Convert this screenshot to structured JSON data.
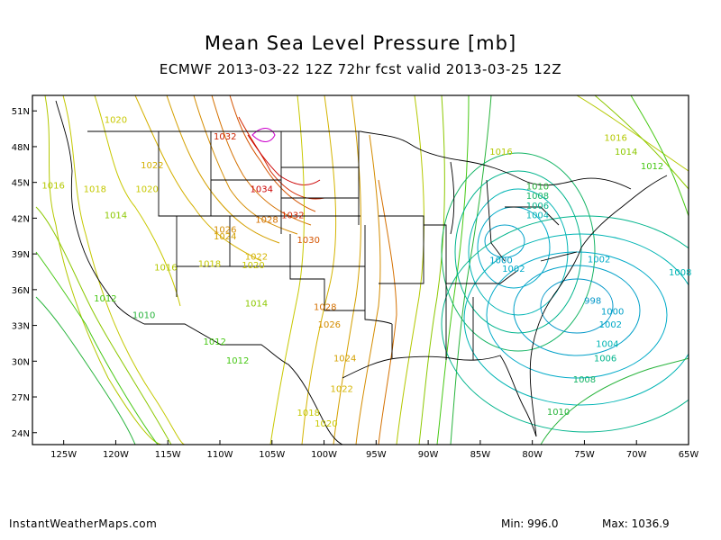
{
  "header": {
    "title": "Mean Sea Level Pressure [mb]",
    "subtitle": "ECMWF 2013-03-22 12Z 72hr fcst valid 2013-03-25 12Z"
  },
  "axes": {
    "lat_labels": [
      "51N",
      "48N",
      "45N",
      "42N",
      "39N",
      "36N",
      "33N",
      "30N",
      "27N",
      "24N"
    ],
    "lon_labels": [
      "125W",
      "120W",
      "115W",
      "110W",
      "105W",
      "100W",
      "95W",
      "90W",
      "85W",
      "80W",
      "75W",
      "70W",
      "65W"
    ]
  },
  "contour_labels": [
    {
      "text": "1020",
      "lon": -120,
      "lat": 50,
      "color": "#c8c800"
    },
    {
      "text": "1032",
      "lon": -109.5,
      "lat": 48.6,
      "color": "#cc2200"
    },
    {
      "text": "1022",
      "lon": -116.5,
      "lat": 46.2,
      "color": "#d4b000"
    },
    {
      "text": "1016",
      "lon": -126,
      "lat": 44.5,
      "color": "#b4c800"
    },
    {
      "text": "1018",
      "lon": -122,
      "lat": 44.2,
      "color": "#c4c800"
    },
    {
      "text": "1020",
      "lon": -117,
      "lat": 44.2,
      "color": "#c8c800"
    },
    {
      "text": "1014",
      "lon": -120,
      "lat": 42,
      "color": "#8cc800"
    },
    {
      "text": "1034",
      "lon": -106,
      "lat": 44.2,
      "color": "#cc0000"
    },
    {
      "text": "1032",
      "lon": -103,
      "lat": 42,
      "color": "#d42800"
    },
    {
      "text": "1028",
      "lon": -105.5,
      "lat": 41.6,
      "color": "#d47000"
    },
    {
      "text": "1026",
      "lon": -109.5,
      "lat": 40.8,
      "color": "#d48c00"
    },
    {
      "text": "1024",
      "lon": -109.5,
      "lat": 40.2,
      "color": "#d4a000"
    },
    {
      "text": "1030",
      "lon": -101.5,
      "lat": 39.9,
      "color": "#d45400"
    },
    {
      "text": "1022",
      "lon": -106.5,
      "lat": 38.5,
      "color": "#d4b400"
    },
    {
      "text": "1020",
      "lon": -106.8,
      "lat": 37.8,
      "color": "#c8c800"
    },
    {
      "text": "1018",
      "lon": -111,
      "lat": 37.9,
      "color": "#c4c800"
    },
    {
      "text": "1016",
      "lon": -115.2,
      "lat": 37.6,
      "color": "#b4c800"
    },
    {
      "text": "1014",
      "lon": -106.5,
      "lat": 34.6,
      "color": "#8cc800"
    },
    {
      "text": "1012",
      "lon": -121,
      "lat": 35,
      "color": "#46c814"
    },
    {
      "text": "1010",
      "lon": -117.3,
      "lat": 33.6,
      "color": "#28b43c"
    },
    {
      "text": "1028",
      "lon": -99.9,
      "lat": 34.3,
      "color": "#d47000"
    },
    {
      "text": "1026",
      "lon": -99.5,
      "lat": 32.8,
      "color": "#d48c00"
    },
    {
      "text": "1012",
      "lon": -110.5,
      "lat": 31.4,
      "color": "#46c814"
    },
    {
      "text": "1012",
      "lon": -108.3,
      "lat": 29.8,
      "color": "#46c814"
    },
    {
      "text": "1024",
      "lon": -98,
      "lat": 30,
      "color": "#d4a000"
    },
    {
      "text": "1022",
      "lon": -98.3,
      "lat": 27.4,
      "color": "#d4b400"
    },
    {
      "text": "1018",
      "lon": -101.5,
      "lat": 25.4,
      "color": "#c4c800"
    },
    {
      "text": "1020",
      "lon": -99.8,
      "lat": 24.5,
      "color": "#c8c800"
    },
    {
      "text": "1016",
      "lon": -83,
      "lat": 47.3,
      "color": "#b4c800"
    },
    {
      "text": "1016",
      "lon": -72,
      "lat": 48.5,
      "color": "#b4c800"
    },
    {
      "text": "1014",
      "lon": -71,
      "lat": 47.3,
      "color": "#8cc800"
    },
    {
      "text": "1012",
      "lon": -68.5,
      "lat": 46.1,
      "color": "#46c814"
    },
    {
      "text": "1010",
      "lon": -79.5,
      "lat": 44.4,
      "color": "#28b43c"
    },
    {
      "text": "1008",
      "lon": -79.5,
      "lat": 43.6,
      "color": "#14b464"
    },
    {
      "text": "1006",
      "lon": -79.5,
      "lat": 42.8,
      "color": "#00b48c"
    },
    {
      "text": "1004",
      "lon": -79.5,
      "lat": 42.0,
      "color": "#00b4b4"
    },
    {
      "text": "1000",
      "lon": -83,
      "lat": 38.2,
      "color": "#00a0c8"
    },
    {
      "text": "1002",
      "lon": -81.8,
      "lat": 37.5,
      "color": "#00aac8"
    },
    {
      "text": "1002",
      "lon": -73.6,
      "lat": 38.3,
      "color": "#00aac8"
    },
    {
      "text": "998",
      "lon": -74.2,
      "lat": 34.8,
      "color": "#0096c8"
    },
    {
      "text": "1000",
      "lon": -72.3,
      "lat": 33.9,
      "color": "#00a0c8"
    },
    {
      "text": "1002",
      "lon": -72.5,
      "lat": 32.8,
      "color": "#00aac8"
    },
    {
      "text": "1004",
      "lon": -72.8,
      "lat": 31.2,
      "color": "#00b4b4"
    },
    {
      "text": "1006",
      "lon": -73,
      "lat": 30.0,
      "color": "#00b48c"
    },
    {
      "text": "1008",
      "lon": -75,
      "lat": 28.2,
      "color": "#14b464"
    },
    {
      "text": "1010",
      "lon": -77.5,
      "lat": 25.5,
      "color": "#28b43c"
    },
    {
      "text": "1008",
      "lon": -65.8,
      "lat": 37.2,
      "color": "#00b4b4"
    }
  ],
  "colors": {
    "low_center": "#00a0c8",
    "high_center": "#cc00cc",
    "border": "#000000"
  },
  "footer": {
    "site": "InstantWeatherMaps.com",
    "min": "Min:  996.0",
    "max": "Max: 1036.9"
  }
}
